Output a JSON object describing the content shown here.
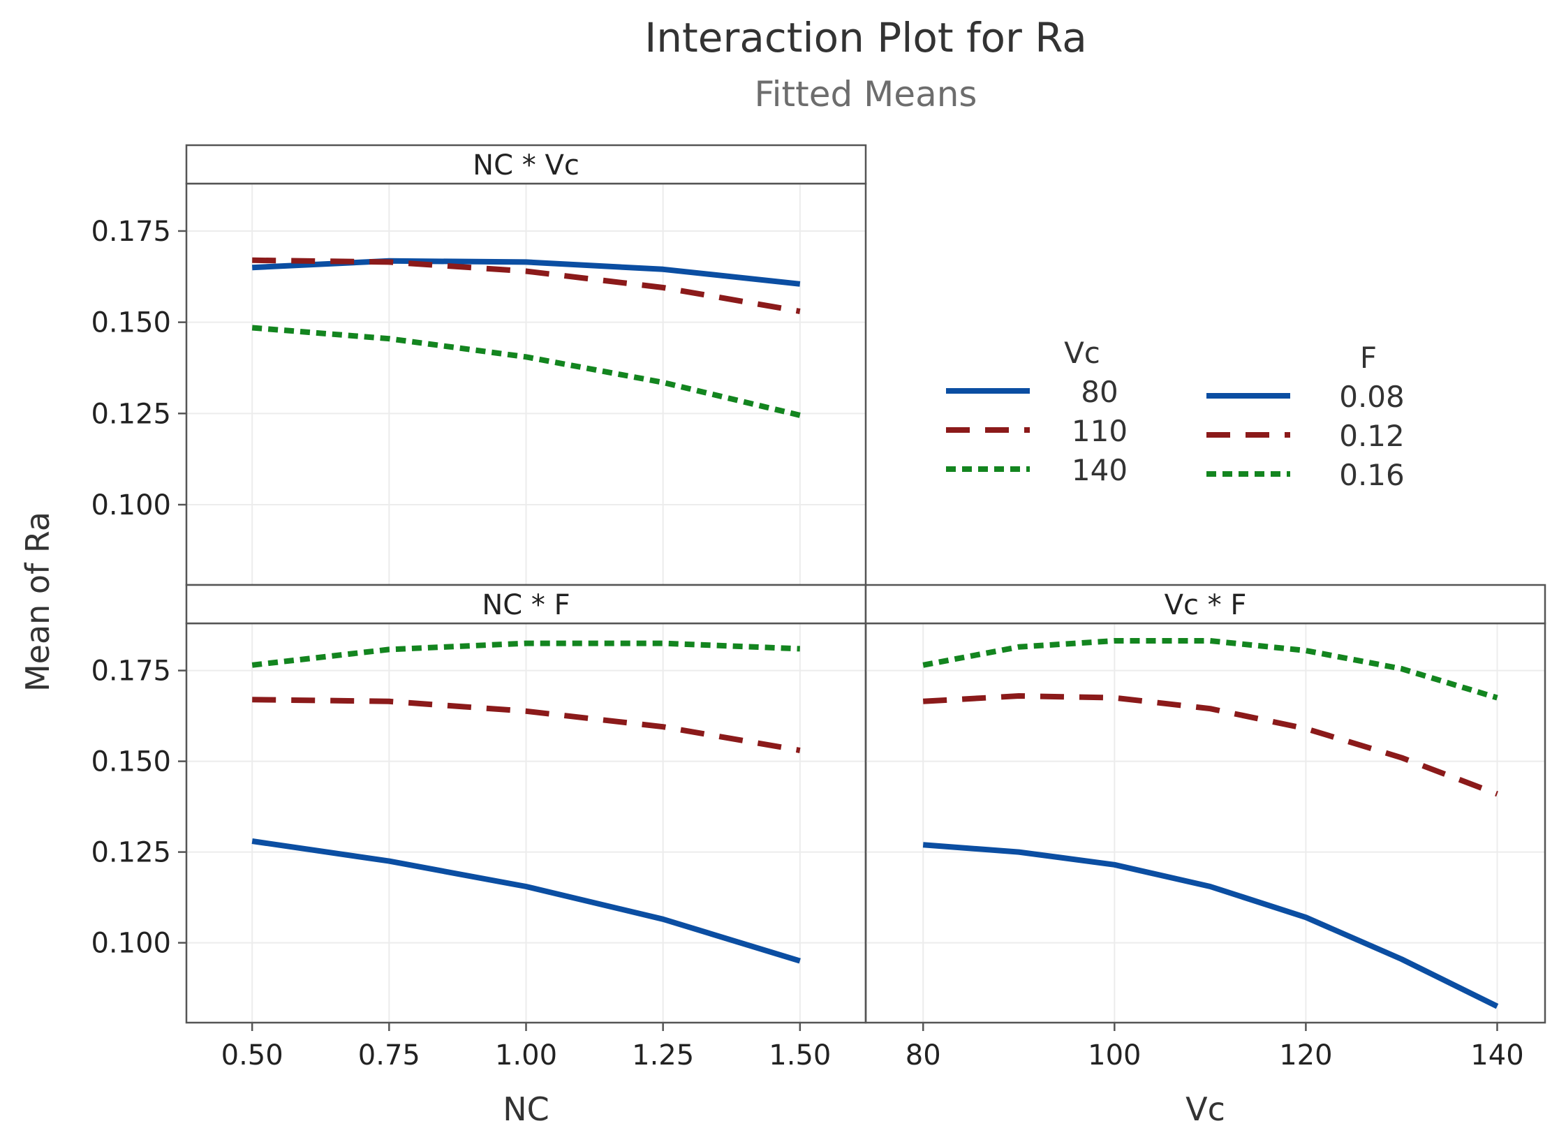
{
  "chart_data": {
    "type": "line",
    "title": "Interaction Plot for Ra",
    "subtitle": "Fitted Means",
    "ylabel": "Mean of Ra",
    "ylim": [
      0.078,
      0.188
    ],
    "yticks": [
      "0.100",
      "0.125",
      "0.150",
      "0.175"
    ],
    "yticks_values": [
      0.1,
      0.125,
      0.15,
      0.175
    ],
    "styles": {
      "solid": {
        "color": "#0b4ea2",
        "dash": ""
      },
      "dashed": {
        "color": "#8b1a1a",
        "dash": "34 22"
      },
      "dotted": {
        "color": "#13851f",
        "dash": "14 9"
      }
    },
    "legends": [
      {
        "title": "Vc",
        "entries": [
          {
            "label": "80",
            "style": "solid"
          },
          {
            "label": "110",
            "style": "dashed"
          },
          {
            "label": "140",
            "style": "dotted"
          }
        ]
      },
      {
        "title": "F",
        "entries": [
          {
            "label": "0.08",
            "style": "solid"
          },
          {
            "label": "0.12",
            "style": "dashed"
          },
          {
            "label": "0.16",
            "style": "dotted"
          }
        ]
      }
    ],
    "panels": [
      {
        "id": "nc-vc",
        "strip": "NC * Vc",
        "xlabel": "",
        "xlim": [
          0.38,
          1.62
        ],
        "xticks": [
          0.5,
          0.75,
          1.0,
          1.25,
          1.5
        ],
        "xtick_labels": [],
        "show_y_ticks": true,
        "series": [
          {
            "name": "Vc = 80",
            "style": "solid",
            "x": [
              0.5,
              0.75,
              1.0,
              1.25,
              1.5
            ],
            "y": [
              0.165,
              0.1668,
              0.1665,
              0.1645,
              0.1605
            ]
          },
          {
            "name": "Vc = 110",
            "style": "dashed",
            "x": [
              0.5,
              0.75,
              1.0,
              1.25,
              1.5
            ],
            "y": [
              0.167,
              0.1665,
              0.164,
              0.1595,
              0.153
            ]
          },
          {
            "name": "Vc = 140",
            "style": "dotted",
            "x": [
              0.5,
              0.75,
              1.0,
              1.25,
              1.5
            ],
            "y": [
              0.1485,
              0.1455,
              0.1405,
              0.1335,
              0.1245
            ]
          }
        ]
      },
      {
        "id": "nc-f",
        "strip": "NC * F",
        "xlabel": "NC",
        "xlim": [
          0.38,
          1.62
        ],
        "xticks": [
          0.5,
          0.75,
          1.0,
          1.25,
          1.5
        ],
        "xtick_labels": [
          "0.50",
          "0.75",
          "1.00",
          "1.25",
          "1.50"
        ],
        "show_y_ticks": true,
        "series": [
          {
            "name": "F = 0.08",
            "style": "solid",
            "x": [
              0.5,
              0.75,
              1.0,
              1.25,
              1.5
            ],
            "y": [
              0.128,
              0.1225,
              0.1155,
              0.1065,
              0.095
            ]
          },
          {
            "name": "F = 0.12",
            "style": "dashed",
            "x": [
              0.5,
              0.75,
              1.0,
              1.25,
              1.5
            ],
            "y": [
              0.167,
              0.1665,
              0.1638,
              0.1595,
              0.153
            ]
          },
          {
            "name": "F = 0.16",
            "style": "dotted",
            "x": [
              0.5,
              0.75,
              1.0,
              1.25,
              1.5
            ],
            "y": [
              0.1765,
              0.1808,
              0.1825,
              0.1825,
              0.181
            ]
          }
        ]
      },
      {
        "id": "vc-f",
        "strip": "Vc * F",
        "xlabel": "Vc",
        "xlim": [
          74,
          145
        ],
        "xticks": [
          80,
          100,
          120,
          140
        ],
        "xtick_labels": [
          "80",
          "100",
          "120",
          "140"
        ],
        "show_y_ticks": false,
        "series": [
          {
            "name": "F = 0.08",
            "style": "solid",
            "x": [
              80,
              90,
              100,
              110,
              120,
              130,
              140
            ],
            "y": [
              0.127,
              0.125,
              0.1215,
              0.1155,
              0.107,
              0.0955,
              0.0825
            ]
          },
          {
            "name": "F = 0.12",
            "style": "dashed",
            "x": [
              80,
              90,
              100,
              110,
              120,
              130,
              140
            ],
            "y": [
              0.1665,
              0.168,
              0.1675,
              0.1645,
              0.159,
              0.151,
              0.141
            ]
          },
          {
            "name": "F = 0.16",
            "style": "dotted",
            "x": [
              80,
              90,
              100,
              110,
              120,
              130,
              140
            ],
            "y": [
              0.1765,
              0.1815,
              0.1832,
              0.1832,
              0.1805,
              0.1755,
              0.1675
            ]
          }
        ]
      }
    ]
  }
}
